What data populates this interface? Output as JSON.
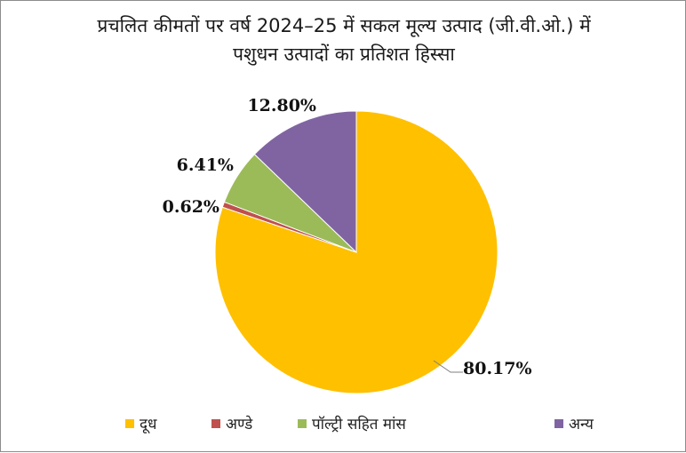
{
  "chart_data": {
    "type": "pie",
    "title_lines": [
      "प्रचलित कीमतों पर वर्ष 2024–25 में सकल मूल्य उत्पाद (जी.वी.ओ.) में",
      "पशुधन उत्पादों का प्रतिशत हिस्सा"
    ],
    "slices": [
      {
        "name": "दूध",
        "value": 80.17,
        "label": "80.17%",
        "color": "#FFC000"
      },
      {
        "name": "अण्डे",
        "value": 0.62,
        "label": "0.62%",
        "color": "#C0504D"
      },
      {
        "name": "पॉल्ट्री सहित मांस",
        "value": 6.41,
        "label": "6.41%",
        "color": "#9BBB59"
      },
      {
        "name": "अन्य",
        "value": 12.8,
        "label": "12.80%",
        "color": "#8064A2"
      }
    ],
    "legend_position": "bottom"
  }
}
